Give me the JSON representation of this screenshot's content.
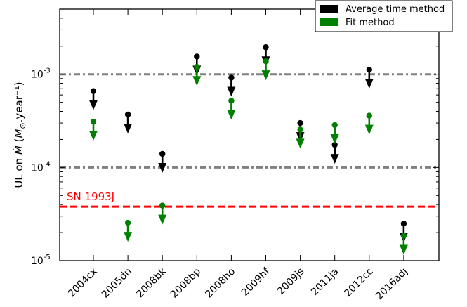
{
  "chart_data": {
    "type": "scatter",
    "categories": [
      "2004cx",
      "2005dn",
      "2008bk",
      "2008bp",
      "2008ho",
      "2009hf",
      "2009js",
      "2011ja",
      "2012cc",
      "2016adj"
    ],
    "ylabel": "UL on Ṁ (M⊙.year⁻¹)",
    "yscale": "log",
    "ylim": [
      1e-05,
      0.005
    ],
    "ytick_labels": [
      {
        "base": "10",
        "exp": "-5",
        "value": 1e-05
      },
      {
        "base": "10",
        "exp": "-4",
        "value": 0.0001
      },
      {
        "base": "10",
        "exp": "-3",
        "value": 0.001
      }
    ],
    "marker_style": "upper limit (point with downward arrow)",
    "series": [
      {
        "name": "Average time method",
        "color": "#000000",
        "values": [
          0.00066,
          0.00037,
          0.00014,
          0.00155,
          0.00092,
          0.00195,
          0.0003,
          0.000175,
          0.00112,
          2.5e-05
        ]
      },
      {
        "name": "Fit method",
        "color": "#008000",
        "values": [
          0.00031,
          2.55e-05,
          3.9e-05,
          0.0012,
          0.00052,
          0.00138,
          0.000255,
          0.000285,
          0.00036,
          1.85e-05
        ]
      }
    ],
    "reference_lines": [
      {
        "value": 0.001,
        "style": "dash-dot",
        "color": "#808080",
        "label": ""
      },
      {
        "value": 0.0001,
        "style": "dash-dot",
        "color": "#808080",
        "label": ""
      },
      {
        "value": 3.8e-05,
        "style": "dashed",
        "color": "#ff0000",
        "label": "SN 1993J"
      }
    ],
    "legend_position": "top-right"
  }
}
